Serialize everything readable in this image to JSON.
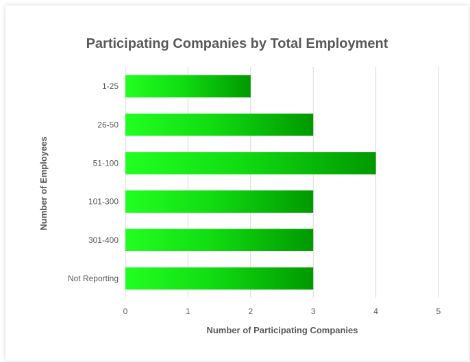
{
  "chart_data": {
    "type": "bar",
    "orientation": "horizontal",
    "title": "Participating Companies by Total Employment",
    "xlabel": "Number of Participating Companies",
    "ylabel": "Number of Employees",
    "categories": [
      "1-25",
      "26-50",
      "51-100",
      "101-300",
      "301-400",
      "Not Reporting"
    ],
    "values": [
      2,
      3,
      4,
      3,
      3,
      3
    ],
    "xlim": [
      0,
      5
    ],
    "xticks": [
      "0",
      "1",
      "2",
      "3",
      "4",
      "5"
    ],
    "grid": "vertical",
    "legend": "none",
    "colors": {
      "bar_light": "#22ff22",
      "bar_dark": "#009900",
      "grid": "#d9d9d9",
      "text": "#595959"
    }
  }
}
